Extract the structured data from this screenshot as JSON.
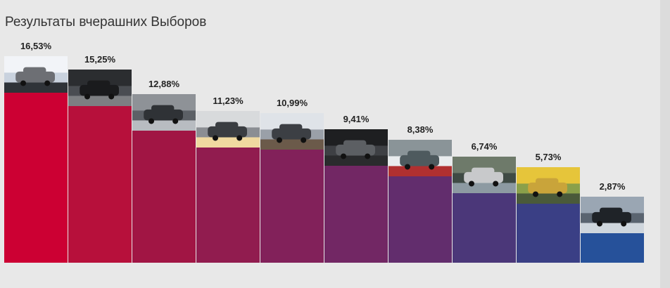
{
  "chart_data": {
    "type": "bar",
    "title": "Результаты вчерашних Выборов",
    "xlabel": "",
    "ylabel": "",
    "ylim": [
      0,
      20
    ],
    "grid": false,
    "legend": "none",
    "categories": [
      "",
      "",
      "",
      "",
      "",
      "",
      "",
      "",
      "",
      ""
    ],
    "values": [
      16.53,
      15.25,
      12.88,
      11.23,
      10.99,
      9.41,
      8.38,
      6.74,
      5.73,
      2.87
    ],
    "value_labels": [
      "16,53%",
      "15,25%",
      "12,88%",
      "11,23%",
      "10,99%",
      "9,41%",
      "8,38%",
      "6,74%",
      "5,73%",
      "2,87%"
    ],
    "colors": [
      "#cc0033",
      "#b7103b",
      "#a11544",
      "#911c4f",
      "#82215a",
      "#722764",
      "#622d6d",
      "#4b3779",
      "#3a3f85",
      "#26519a"
    ]
  }
}
